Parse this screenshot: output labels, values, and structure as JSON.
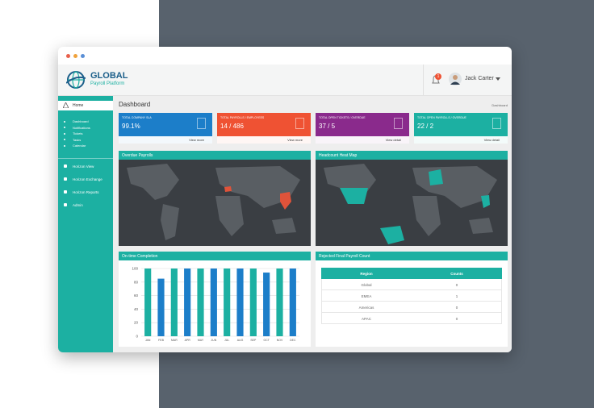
{
  "window": {
    "brand": "GLOBAL",
    "brand_sub": "Payroll Platform",
    "notifications": "1",
    "user": "Jack Carter"
  },
  "sidebar": {
    "active": "Home",
    "submenu": [
      "Dashboard",
      "Notifications",
      "Tickets",
      "Tasks",
      "Calendar"
    ],
    "menu": [
      "Horizon View",
      "Horizon Exchange",
      "Horizon Reports",
      "Admin"
    ]
  },
  "page": {
    "title": "Dashboard",
    "breadcrumb": "Dashboard"
  },
  "cards": [
    {
      "label": "TOTAL COMPANY SLA",
      "value": "99.1%",
      "link": "View more",
      "color": "#1c7ec9"
    },
    {
      "label": "TOTAL PAYROLLS / EMPLOYEES",
      "value": "14 / 486",
      "link": "View more",
      "color": "#ef5233"
    },
    {
      "label": "TOTAL OPEN TICKETS / OVERDUE",
      "value": "37 / 5",
      "link": "View detail",
      "color": "#8a2a8c"
    },
    {
      "label": "TOTAL OPEN PAYROLLS / OVERDUE",
      "value": "22 / 2",
      "link": "View detail",
      "color": "#1cb0a2"
    }
  ],
  "panels": {
    "overdue": "Overdue Payrolls",
    "heatmap": "Headcount Heat Map",
    "rejected": "Rejected Final Payroll Count"
  },
  "table": {
    "header": [
      "Region",
      "Counts"
    ],
    "rows": [
      [
        "Global",
        0
      ],
      [
        "EMEA",
        1
      ],
      [
        "Americas",
        0
      ],
      [
        "APAC",
        0
      ]
    ]
  },
  "chart_data": {
    "type": "bar",
    "title": "On-time Completion",
    "categories": [
      "JAN",
      "FEB",
      "MAR",
      "APR",
      "MAY",
      "JUN",
      "JUL",
      "AUG",
      "SEP",
      "OCT",
      "NOV",
      "DEC"
    ],
    "values": [
      100,
      85,
      100,
      100,
      100,
      100,
      100,
      100,
      100,
      94,
      100,
      100
    ],
    "colors": [
      "#1cb0a2",
      "#1c7ec9",
      "#1cb0a2",
      "#1c7ec9",
      "#1cb0a2",
      "#1c7ec9",
      "#1cb0a2",
      "#1c7ec9",
      "#1cb0a2",
      "#1c7ec9",
      "#1cb0a2",
      "#1c7ec9"
    ],
    "ylim": [
      0,
      100
    ],
    "yticks": [
      0,
      20,
      40,
      60,
      80,
      100
    ],
    "grid": true
  }
}
